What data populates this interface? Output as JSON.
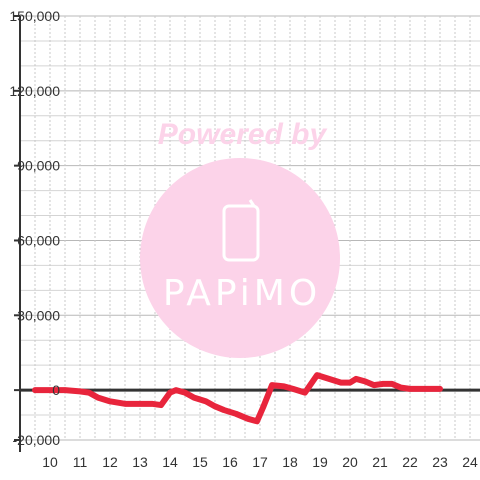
{
  "chart_data": {
    "type": "line",
    "title": "",
    "xlabel": "",
    "ylabel": "",
    "xlim": [
      9.5,
      24.4
    ],
    "ylim": [
      -20000,
      150000
    ],
    "x_ticks": [
      10,
      11,
      12,
      13,
      14,
      15,
      16,
      17,
      18,
      19,
      20,
      21,
      22,
      23,
      24
    ],
    "y_ticks": [
      -20000,
      0,
      30000,
      60000,
      90000,
      120000,
      150000
    ],
    "y_tick_labels": [
      "-20,000",
      "0",
      "30,000",
      "60,000",
      "90,000",
      "120,000",
      "150,000"
    ],
    "grid": true,
    "legend": "none",
    "series": [
      {
        "color": "#e8253c",
        "x": [
          9.5,
          10.0,
          10.5,
          11.0,
          11.3,
          11.6,
          12.0,
          12.5,
          13.0,
          13.4,
          13.7,
          14.0,
          14.2,
          14.5,
          14.8,
          15.2,
          15.5,
          15.8,
          16.2,
          16.6,
          16.9,
          17.1,
          17.4,
          17.8,
          18.1,
          18.5,
          18.9,
          19.3,
          19.7,
          20.0,
          20.2,
          20.5,
          20.8,
          21.1,
          21.4,
          21.7,
          22.0,
          22.3,
          22.6,
          23.0
        ],
        "y": [
          0,
          0,
          0,
          -500,
          -1000,
          -3000,
          -4500,
          -5500,
          -5500,
          -5500,
          -6000,
          -1000,
          0,
          -1000,
          -3000,
          -4500,
          -6500,
          -8000,
          -9500,
          -11500,
          -12500,
          -7000,
          2000,
          1500,
          500,
          -1000,
          6000,
          4500,
          3000,
          3000,
          4500,
          3500,
          2000,
          2500,
          2500,
          1000,
          500,
          500,
          500,
          500
        ]
      }
    ]
  },
  "watermark": {
    "line1": "Powered by",
    "brand": "PAPiMO",
    "color": "#fcd3e9"
  }
}
